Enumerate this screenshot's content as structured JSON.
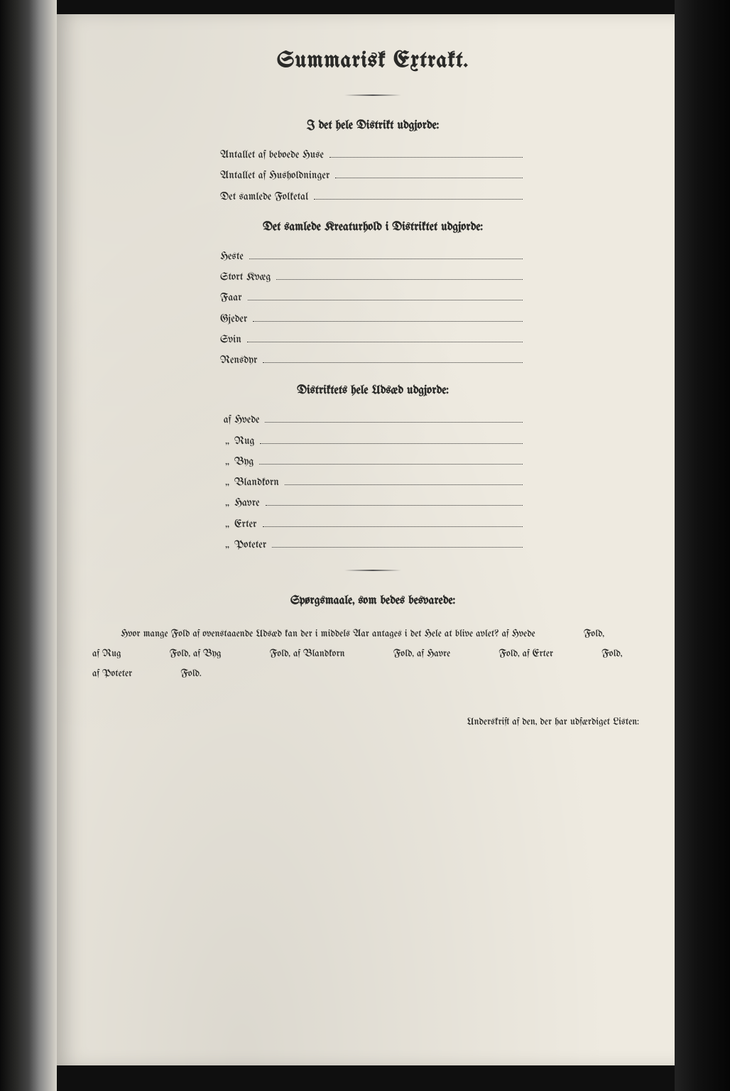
{
  "title": "Summarisk Extrakt.",
  "section1": {
    "heading": "I det hele Distrikt udgjorde:",
    "items": [
      "Antallet af beboede Huse",
      "Antallet af Husholdninger",
      "Det samlede Folketal"
    ]
  },
  "section2": {
    "heading": "Det samlede Kreaturhold i Distriktet udgjorde:",
    "items": [
      "Heste",
      "Stort Kvæg",
      "Faar",
      "Gjeder",
      "Svin",
      "Rensdyr"
    ]
  },
  "section3": {
    "heading": "Distriktets hele Udsæd udgjorde:",
    "prefix_first": "af",
    "ditto": "„",
    "items": [
      "Hvede",
      "Rug",
      "Byg",
      "Blandkorn",
      "Havre",
      "Erter",
      "Poteter"
    ]
  },
  "questions": {
    "heading": "Spørgsmaale, som bedes besvarede:",
    "line1_a": "Hvor mange Fold af ovenstaaende Udsæd kan der i middels Aar antages i det Hele at blive avlet?  af Hvede",
    "line1_b": "Fold,",
    "line2_parts": [
      "af Rug",
      "Fold, af Byg",
      "Fold, af Blandkorn",
      "Fold, af Havre",
      "Fold, af Erter",
      "Fold,"
    ],
    "line3_parts": [
      "af Poteter",
      "Fold."
    ]
  },
  "signature": "Underskrift af den, der har udfærdiget Listen:"
}
